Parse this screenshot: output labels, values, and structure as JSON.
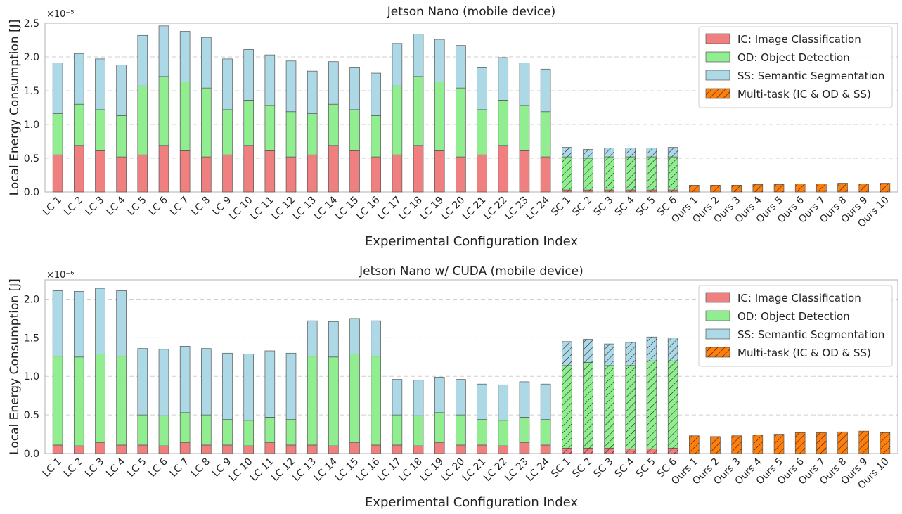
{
  "colors": {
    "ic": "#f08080",
    "od": "#90ee90",
    "ss": "#add8e6",
    "multi": "#ff7f0e"
  },
  "categories": [
    "LC 1",
    "LC 2",
    "LC 3",
    "LC 4",
    "LC 5",
    "LC 6",
    "LC 7",
    "LC 8",
    "LC 9",
    "LC 10",
    "LC 11",
    "LC 12",
    "LC 13",
    "LC 14",
    "LC 15",
    "LC 16",
    "LC 17",
    "LC 18",
    "LC 19",
    "LC 20",
    "LC 21",
    "LC 22",
    "LC 23",
    "LC 24",
    "SC 1",
    "SC 2",
    "SC 3",
    "SC 4",
    "SC 5",
    "SC 6",
    "Ours 1",
    "Ours 2",
    "Ours 3",
    "Ours 4",
    "Ours 5",
    "Ours 6",
    "Ours 7",
    "Ours 8",
    "Ours 9",
    "Ours 10"
  ],
  "chart_data": [
    {
      "type": "bar",
      "stacked": true,
      "title": "Jetson Nano (mobile device)",
      "xlabel": "Experimental Configuration Index",
      "ylabel": "Local Energy Consumption [J]",
      "yscale_label": "×10⁻⁵",
      "ylim": [
        0,
        2.5
      ],
      "yticks": [
        "0.0",
        "0.5",
        "1.0",
        "1.5",
        "2.0",
        "2.5"
      ],
      "legend": [
        "IC: Image Classification",
        "OD: Object Detection",
        "SS: Semantic Segmentation",
        "Multi-task (IC & OD & SS)"
      ],
      "legend_position": "top-right",
      "grid": "horizontal",
      "series": [
        {
          "name": "IC: Image Classification",
          "values": [
            0.55,
            0.69,
            0.61,
            0.52,
            0.55,
            0.69,
            0.61,
            0.52,
            0.55,
            0.69,
            0.61,
            0.52,
            0.55,
            0.69,
            0.61,
            0.52,
            0.55,
            0.69,
            0.61,
            0.52,
            0.55,
            0.69,
            0.61,
            0.52,
            0.03,
            0.03,
            0.03,
            0.03,
            0.03,
            0.03,
            0,
            0,
            0,
            0,
            0,
            0,
            0,
            0,
            0,
            0
          ]
        },
        {
          "name": "OD: Object Detection",
          "values": [
            0.61,
            0.61,
            0.61,
            0.61,
            1.02,
            1.02,
            1.02,
            1.02,
            0.67,
            0.67,
            0.67,
            0.67,
            0.61,
            0.61,
            0.61,
            0.61,
            1.02,
            1.02,
            1.02,
            1.02,
            0.67,
            0.67,
            0.67,
            0.67,
            0.49,
            0.47,
            0.49,
            0.49,
            0.49,
            0.49,
            0,
            0,
            0,
            0,
            0,
            0,
            0,
            0,
            0,
            0
          ]
        },
        {
          "name": "SS: Semantic Segmentation",
          "values": [
            0.75,
            0.75,
            0.75,
            0.75,
            0.75,
            0.75,
            0.75,
            0.75,
            0.75,
            0.75,
            0.75,
            0.75,
            0.63,
            0.63,
            0.63,
            0.63,
            0.63,
            0.63,
            0.63,
            0.63,
            0.63,
            0.63,
            0.63,
            0.63,
            0.14,
            0.13,
            0.13,
            0.13,
            0.13,
            0.14,
            0,
            0,
            0,
            0,
            0,
            0,
            0,
            0,
            0,
            0
          ]
        },
        {
          "name": "Multi-task (IC & OD & SS)",
          "values": [
            0,
            0,
            0,
            0,
            0,
            0,
            0,
            0,
            0,
            0,
            0,
            0,
            0,
            0,
            0,
            0,
            0,
            0,
            0,
            0,
            0,
            0,
            0,
            0,
            0,
            0,
            0,
            0,
            0,
            0,
            0.1,
            0.1,
            0.1,
            0.11,
            0.11,
            0.12,
            0.12,
            0.13,
            0.12,
            0.13
          ]
        }
      ],
      "hatched_categories": [
        "SC 1",
        "SC 2",
        "SC 3",
        "SC 4",
        "SC 5",
        "SC 6"
      ]
    },
    {
      "type": "bar",
      "stacked": true,
      "title": "Jetson Nano w/ CUDA (mobile device)",
      "xlabel": "Experimental Configuration Index",
      "ylabel": "Local Energy Consumption [J]",
      "yscale_label": "×10⁻⁶",
      "ylim": [
        0,
        2.25
      ],
      "yticks": [
        "0.0",
        "0.5",
        "1.0",
        "1.5",
        "2.0"
      ],
      "legend": [
        "IC: Image Classification",
        "OD: Object Detection",
        "SS: Semantic Segmentation",
        "Multi-task (IC & OD & SS)"
      ],
      "legend_position": "top-right",
      "grid": "horizontal",
      "series": [
        {
          "name": "IC: Image Classification",
          "values": [
            0.11,
            0.1,
            0.14,
            0.11,
            0.11,
            0.1,
            0.14,
            0.11,
            0.11,
            0.1,
            0.14,
            0.11,
            0.11,
            0.1,
            0.14,
            0.11,
            0.11,
            0.1,
            0.14,
            0.11,
            0.11,
            0.1,
            0.14,
            0.11,
            0.07,
            0.07,
            0.07,
            0.06,
            0.06,
            0.07,
            0,
            0,
            0,
            0,
            0,
            0,
            0,
            0,
            0,
            0
          ]
        },
        {
          "name": "OD: Object Detection",
          "values": [
            1.15,
            1.15,
            1.15,
            1.15,
            0.39,
            0.39,
            0.39,
            0.39,
            0.33,
            0.33,
            0.33,
            0.33,
            1.15,
            1.15,
            1.15,
            1.15,
            0.39,
            0.39,
            0.39,
            0.39,
            0.33,
            0.33,
            0.33,
            0.33,
            1.07,
            1.11,
            1.07,
            1.08,
            1.14,
            1.13,
            0,
            0,
            0,
            0,
            0,
            0,
            0,
            0,
            0,
            0
          ]
        },
        {
          "name": "SS: Semantic Segmentation",
          "values": [
            0.85,
            0.85,
            0.85,
            0.85,
            0.86,
            0.86,
            0.86,
            0.86,
            0.86,
            0.86,
            0.86,
            0.86,
            0.46,
            0.46,
            0.46,
            0.46,
            0.46,
            0.46,
            0.46,
            0.46,
            0.46,
            0.46,
            0.46,
            0.46,
            0.31,
            0.3,
            0.28,
            0.3,
            0.31,
            0.3,
            0,
            0,
            0,
            0,
            0,
            0,
            0,
            0,
            0,
            0
          ]
        },
        {
          "name": "Multi-task (IC & OD & SS)",
          "values": [
            0,
            0,
            0,
            0,
            0,
            0,
            0,
            0,
            0,
            0,
            0,
            0,
            0,
            0,
            0,
            0,
            0,
            0,
            0,
            0,
            0,
            0,
            0,
            0,
            0,
            0,
            0,
            0,
            0,
            0,
            0.23,
            0.22,
            0.23,
            0.24,
            0.25,
            0.27,
            0.27,
            0.28,
            0.29,
            0.27
          ]
        }
      ],
      "hatched_categories": [
        "SC 1",
        "SC 2",
        "SC 3",
        "SC 4",
        "SC 5",
        "SC 6"
      ]
    }
  ]
}
